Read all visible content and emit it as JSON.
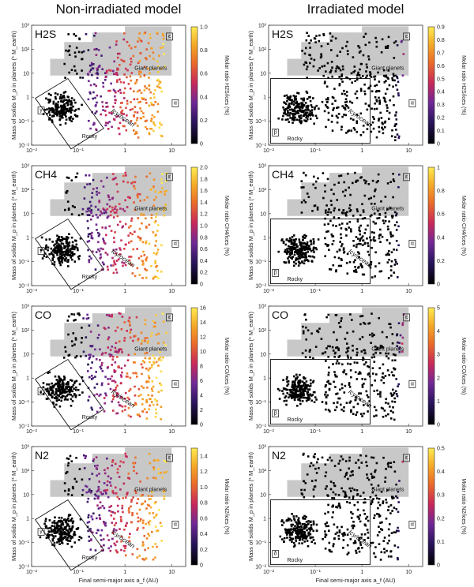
{
  "titles": {
    "left": "Non-irradiated model",
    "right": "Irradiated model"
  },
  "labels": {
    "ylabel": "Mass of solids M_p in planets (* M_earth)",
    "xlabel_left": "Final semi-major axis a_f (AU)",
    "xlabel_right": "Final semi-major axis a_f (AU)",
    "giant": "Giant planets",
    "icy": "Icy/ocean",
    "rocky": "Rocky",
    "box_e": "ε",
    "box_a": "α",
    "box_b": "β",
    "box_g": "γ",
    "box_d": "δ"
  },
  "colors": {
    "grey_region": "#c8c8c8",
    "low_color": "#000000",
    "mid_color": "#6b2fa0",
    "high_color": "#ffe24d"
  },
  "chart_data": [
    {
      "type": "scatter",
      "model": "Non-irradiated model",
      "species": "H2S",
      "colorbar_label": "Molar ratio H2S/ices (%)",
      "colorbar_ticks": [
        "0",
        "0.2",
        "0.4",
        "0.6",
        "0.8",
        "1.0"
      ],
      "colorbar_range": [
        0,
        1.0
      ],
      "xlim": [
        0.01,
        20
      ],
      "ylim": [
        0.01,
        1000
      ],
      "xscale": "log",
      "yscale": "log",
      "xticks": [
        "10⁻²",
        "10⁻¹",
        "1",
        "10"
      ],
      "yticks": [
        "10⁻²",
        "10⁻¹",
        "1",
        "10",
        "10²",
        "10³"
      ]
    },
    {
      "type": "scatter",
      "model": "Irradiated model",
      "species": "H2S",
      "colorbar_label": "Molar ratio H2S/ices (%)",
      "colorbar_ticks": [
        "0",
        "0.1",
        "0.2",
        "0.3",
        "0.4",
        "0.5",
        "0.6",
        "0.7",
        "0.8",
        "0.9"
      ],
      "colorbar_range": [
        0,
        0.9
      ],
      "xlim": [
        0.01,
        20
      ],
      "ylim": [
        0.01,
        1000
      ],
      "xscale": "log",
      "yscale": "log",
      "xticks": [
        "10⁻²",
        "10⁻¹",
        "1",
        "10"
      ],
      "yticks": [
        "10⁻²",
        "10⁻¹",
        "1",
        "10",
        "10²",
        "10³"
      ]
    },
    {
      "type": "scatter",
      "model": "Non-irradiated model",
      "species": "CH4",
      "colorbar_label": "Molar ratio CH4/ices (%)",
      "colorbar_ticks": [
        "0",
        "0.2",
        "0.4",
        "0.6",
        "0.8",
        "1.0",
        "1.2",
        "1.4",
        "1.6",
        "1.8",
        "2.0"
      ],
      "colorbar_range": [
        0,
        2.0
      ],
      "xlim": [
        0.01,
        20
      ],
      "ylim": [
        0.01,
        1000
      ],
      "xscale": "log",
      "yscale": "log",
      "xticks": [
        "10⁻²",
        "10⁻¹",
        "1",
        "10"
      ],
      "yticks": [
        "10⁻²",
        "10⁻¹",
        "1",
        "10",
        "10²",
        "10³"
      ]
    },
    {
      "type": "scatter",
      "model": "Irradiated model",
      "species": "CH4",
      "colorbar_label": "Molar ratio CH4/ices (%)",
      "colorbar_ticks": [
        "0",
        "0.2",
        "0.4",
        "0.6",
        "0.8",
        "1"
      ],
      "colorbar_range": [
        0,
        1
      ],
      "xlim": [
        0.01,
        20
      ],
      "ylim": [
        0.01,
        1000
      ],
      "xscale": "log",
      "yscale": "log",
      "xticks": [
        "10⁻²",
        "10⁻¹",
        "1",
        "10"
      ],
      "yticks": [
        "10⁻²",
        "10⁻¹",
        "1",
        "10",
        "10²",
        "10³"
      ]
    },
    {
      "type": "scatter",
      "model": "Non-irradiated model",
      "species": "CO",
      "colorbar_label": "Molar ratio CO/ices (%)",
      "colorbar_ticks": [
        "0",
        "2",
        "4",
        "6",
        "8",
        "10",
        "12",
        "14",
        "16"
      ],
      "colorbar_range": [
        0,
        16
      ],
      "xlim": [
        0.01,
        20
      ],
      "ylim": [
        0.01,
        1000
      ],
      "xscale": "log",
      "yscale": "log",
      "xticks": [
        "10⁻²",
        "10⁻¹",
        "1",
        "10"
      ],
      "yticks": [
        "10⁻²",
        "10⁻¹",
        "1",
        "10",
        "10²",
        "10³"
      ]
    },
    {
      "type": "scatter",
      "model": "Irradiated model",
      "species": "CO",
      "colorbar_label": "Molar ratio CO/ices (%)",
      "colorbar_ticks": [
        "0",
        "1",
        "2",
        "3",
        "4",
        "5"
      ],
      "colorbar_range": [
        0,
        5
      ],
      "xlim": [
        0.01,
        20
      ],
      "ylim": [
        0.01,
        1000
      ],
      "xscale": "log",
      "yscale": "log",
      "xticks": [
        "10⁻²",
        "10⁻¹",
        "1",
        "10"
      ],
      "yticks": [
        "10⁻²",
        "10⁻¹",
        "1",
        "10",
        "10²",
        "10³"
      ]
    },
    {
      "type": "scatter",
      "model": "Non-irradiated model",
      "species": "N2",
      "colorbar_label": "Molar ratio N2/ices (%)",
      "colorbar_ticks": [
        "0",
        "0.2",
        "0.4",
        "0.6",
        "0.8",
        "1.0",
        "1.2",
        "1.4"
      ],
      "colorbar_range": [
        0,
        1.5
      ],
      "xlim": [
        0.01,
        20
      ],
      "ylim": [
        0.01,
        1000
      ],
      "xscale": "log",
      "yscale": "log",
      "xticks": [
        "10⁻²",
        "10⁻¹",
        "1",
        "10"
      ],
      "yticks": [
        "10⁻²",
        "10⁻¹",
        "1",
        "10",
        "10²",
        "10³"
      ]
    },
    {
      "type": "scatter",
      "model": "Irradiated model",
      "species": "N2",
      "colorbar_label": "Molar ratio N2/ices (%)",
      "colorbar_ticks": [
        "0",
        "0.1",
        "0.2",
        "0.3",
        "0.4",
        "0.5"
      ],
      "colorbar_range": [
        0,
        0.5
      ],
      "xlim": [
        0.01,
        20
      ],
      "ylim": [
        0.01,
        1000
      ],
      "xscale": "log",
      "yscale": "log",
      "xticks": [
        "10⁻²",
        "10⁻¹",
        "1",
        "10"
      ],
      "yticks": [
        "10⁻²",
        "10⁻¹",
        "1",
        "10",
        "10²",
        "10³"
      ]
    }
  ]
}
